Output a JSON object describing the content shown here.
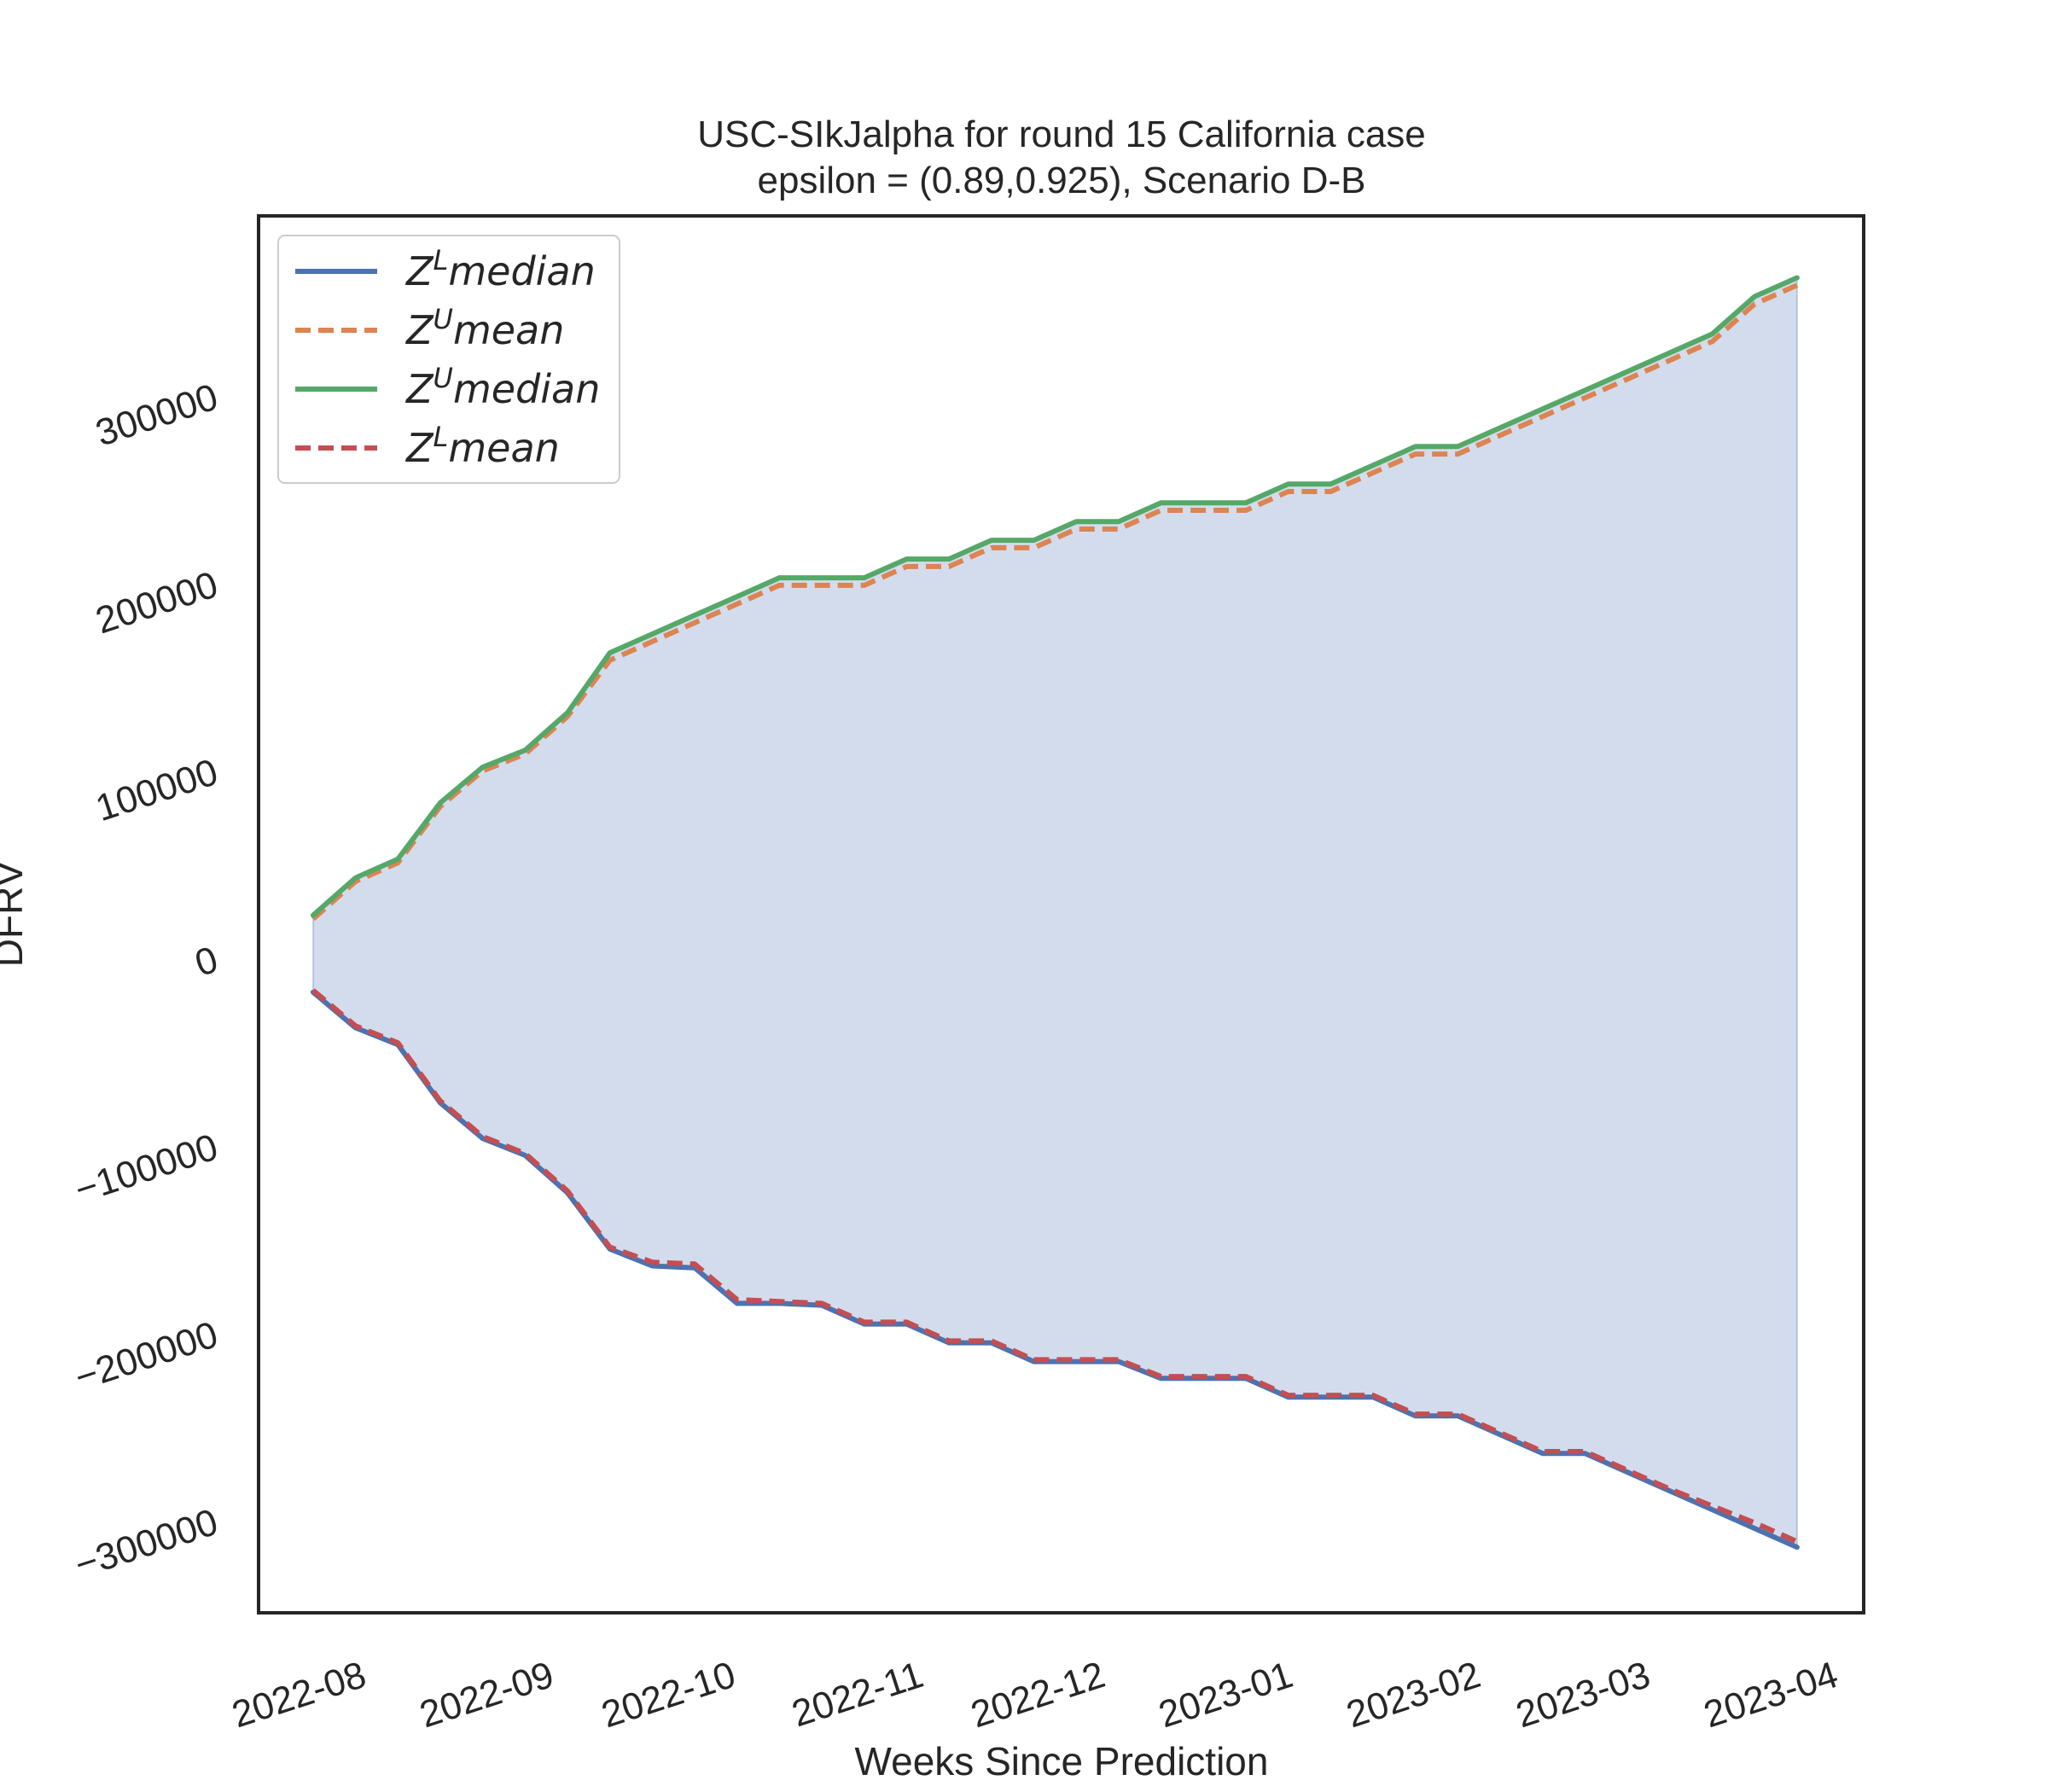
{
  "chart_data": {
    "type": "area",
    "title_lines": [
      "USC-SIkJalpha for round 15 California  case",
      "epsilon = (0.89,0.925), Scenario D-B"
    ],
    "xlabel": "Weeks Since Prediction",
    "ylabel": "DFRV",
    "x_tick_labels": [
      "2022-08",
      "2022-09",
      "2022-10",
      "2022-11",
      "2022-12",
      "2023-01",
      "2023-02",
      "2023-03",
      "2023-04"
    ],
    "x_tick_dates": [
      "2022-08-01",
      "2022-09-01",
      "2022-10-01",
      "2022-11-01",
      "2022-12-01",
      "2023-01-01",
      "2023-02-01",
      "2023-03-01",
      "2023-04-01"
    ],
    "y_ticks": [
      -300000,
      -200000,
      -100000,
      0,
      100000,
      200000,
      300000
    ],
    "y_tick_labels": [
      "−300000",
      "−200000",
      "−100000",
      "0",
      "100000",
      "200000",
      "300000"
    ],
    "xlim": [
      "2022-07-15",
      "2023-04-06"
    ],
    "ylim": [
      -350000,
      395000
    ],
    "grid": false,
    "legend_position": "upper left",
    "colors": {
      "band_fill": "#c8d3e7",
      "ZL_median": "#4c72b0",
      "ZU_mean": "#dd8452",
      "ZU_median": "#55a868",
      "ZL_mean": "#c44e52",
      "frame": "#262626"
    },
    "x": [
      "2022-07-24",
      "2022-07-31",
      "2022-08-07",
      "2022-08-14",
      "2022-08-21",
      "2022-08-28",
      "2022-09-04",
      "2022-09-11",
      "2022-09-18",
      "2022-09-25",
      "2022-10-02",
      "2022-10-09",
      "2022-10-16",
      "2022-10-23",
      "2022-10-30",
      "2022-11-06",
      "2022-11-13",
      "2022-11-20",
      "2022-11-27",
      "2022-12-04",
      "2022-12-11",
      "2022-12-18",
      "2022-12-25",
      "2023-01-01",
      "2023-01-08",
      "2023-01-15",
      "2023-01-22",
      "2023-01-29",
      "2023-02-05",
      "2023-02-12",
      "2023-02-19",
      "2023-02-26",
      "2023-03-05",
      "2023-03-12",
      "2023-03-19",
      "2023-03-26"
    ],
    "series": [
      {
        "name": "Z^L median",
        "legend_base": "Z",
        "legend_sup": "L",
        "legend_word": "median",
        "color_key": "ZL_median",
        "style": "solid",
        "values": [
          -19000,
          -38000,
          -47000,
          -78000,
          -97000,
          -106000,
          -126000,
          -156000,
          -165000,
          -166000,
          -185000,
          -185000,
          -186000,
          -196000,
          -196000,
          -206000,
          -206000,
          -216000,
          -216000,
          -216000,
          -225000,
          -225000,
          -225000,
          -235000,
          -235000,
          -235000,
          -245000,
          -245000,
          -255000,
          -265000,
          -265000,
          -275000,
          -285000,
          -295000,
          -305000,
          -315000
        ]
      },
      {
        "name": "Z^U mean",
        "legend_base": "Z",
        "legend_sup": "U",
        "legend_word": "mean",
        "color_key": "ZU_mean",
        "style": "dashed",
        "values": [
          20000,
          40000,
          50000,
          80000,
          99000,
          108000,
          128000,
          158000,
          168000,
          178000,
          188000,
          198000,
          198000,
          198000,
          208000,
          208000,
          218000,
          218000,
          228000,
          228000,
          238000,
          238000,
          238000,
          248000,
          248000,
          258000,
          268000,
          268000,
          278000,
          288000,
          298000,
          308000,
          318000,
          328000,
          348000,
          358000
        ]
      },
      {
        "name": "Z^U median",
        "legend_base": "Z",
        "legend_sup": "U",
        "legend_word": "median",
        "color_key": "ZU_median",
        "style": "solid",
        "values": [
          22000,
          42000,
          52000,
          82000,
          101000,
          110000,
          130000,
          162000,
          172000,
          182000,
          192000,
          202000,
          202000,
          202000,
          212000,
          212000,
          222000,
          222000,
          232000,
          232000,
          242000,
          242000,
          242000,
          252000,
          252000,
          262000,
          272000,
          272000,
          282000,
          292000,
          302000,
          312000,
          322000,
          332000,
          352000,
          362000
        ]
      },
      {
        "name": "Z^L mean",
        "legend_base": "Z",
        "legend_sup": "L",
        "legend_word": "mean",
        "color_key": "ZL_mean",
        "style": "dashed",
        "values": [
          -18000,
          -37000,
          -46000,
          -77000,
          -96000,
          -105000,
          -125000,
          -155000,
          -163000,
          -164000,
          -183000,
          -184000,
          -185000,
          -195000,
          -195000,
          -205000,
          -205000,
          -215000,
          -215000,
          -215000,
          -224000,
          -224000,
          -224000,
          -234000,
          -234000,
          -234000,
          -244000,
          -244000,
          -254000,
          -264000,
          -264000,
          -274000,
          -284000,
          -293000,
          -302000,
          -312000
        ]
      }
    ]
  }
}
